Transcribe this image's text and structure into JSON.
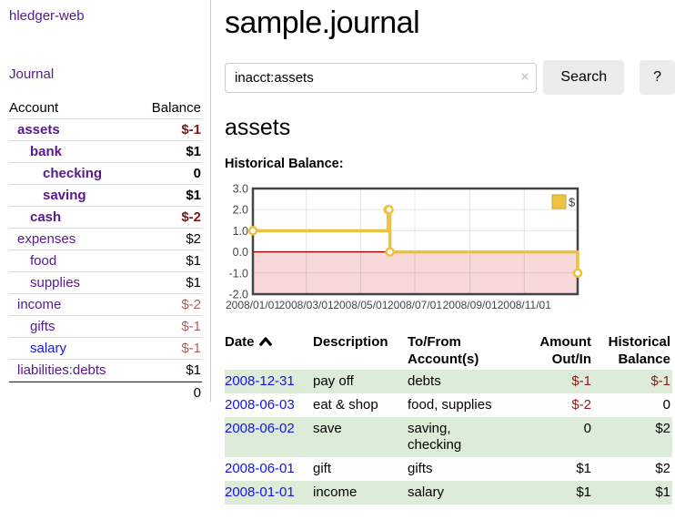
{
  "app": {
    "brand": "hledger-web",
    "nav": {
      "journal": "Journal"
    }
  },
  "sidebar": {
    "header": {
      "account": "Account",
      "balance": "Balance"
    },
    "rows": [
      {
        "name": "assets",
        "balance": "$-1",
        "level": 1,
        "strong": true,
        "balance_tone": "neg-strong",
        "link_tone": "visited"
      },
      {
        "name": "bank",
        "balance": "$1",
        "level": 2,
        "strong": true,
        "balance_tone": "pos",
        "link_tone": "visited"
      },
      {
        "name": "checking",
        "balance": "0",
        "level": 3,
        "strong": true,
        "balance_tone": "pos",
        "link_tone": "visited"
      },
      {
        "name": "saving",
        "balance": "$1",
        "level": 3,
        "strong": true,
        "balance_tone": "pos",
        "link_tone": "visited"
      },
      {
        "name": "cash",
        "balance": "$-2",
        "level": 2,
        "strong": true,
        "balance_tone": "neg-strong",
        "link_tone": "visited"
      },
      {
        "name": "expenses",
        "balance": "$2",
        "level": 1,
        "strong": false,
        "balance_tone": "pos",
        "link_tone": "visited"
      },
      {
        "name": "food",
        "balance": "$1",
        "level": 2,
        "strong": false,
        "balance_tone": "pos",
        "link_tone": "visited"
      },
      {
        "name": "supplies",
        "balance": "$1",
        "level": 2,
        "strong": false,
        "balance_tone": "pos",
        "link_tone": "visited"
      },
      {
        "name": "income",
        "balance": "$-2",
        "level": 1,
        "strong": false,
        "balance_tone": "neg-muted",
        "link_tone": "visited"
      },
      {
        "name": "gifts",
        "balance": "$-1",
        "level": 2,
        "strong": false,
        "balance_tone": "neg-muted",
        "link_tone": "visited"
      },
      {
        "name": "salary",
        "balance": "$-1",
        "level": 2,
        "strong": false,
        "balance_tone": "neg-muted",
        "link_tone": "unvisited"
      },
      {
        "name": "liabilities:debts",
        "balance": "$1",
        "level": 1,
        "strong": false,
        "balance_tone": "pos",
        "link_tone": "visited"
      }
    ],
    "total": "0"
  },
  "main": {
    "title": "sample.journal",
    "search": {
      "value": "inacct:assets",
      "clear_icon": "×",
      "search_button": "Search",
      "help_button": "?"
    },
    "account_heading": "assets",
    "chart_label": "Historical Balance:"
  },
  "chart_data": {
    "type": "line",
    "title": "Historical Balance",
    "step": true,
    "xrange": [
      "2008-01-01",
      "2008-12-31"
    ],
    "ylim": [
      -2,
      3
    ],
    "yticks": [
      "3.0",
      "2.0",
      "1.0",
      "0.0",
      "-1.0",
      "-2.0"
    ],
    "xticks": [
      "2008/01/01",
      "2008/03/01",
      "2008/05/01",
      "2008/07/01",
      "2008/09/01",
      "2008/11/01"
    ],
    "series": [
      {
        "name": "$",
        "color": "#edc240",
        "points": [
          {
            "x": "2008-01-01",
            "y": 1
          },
          {
            "x": "2008-06-01",
            "y": 2
          },
          {
            "x": "2008-06-02",
            "y": 2
          },
          {
            "x": "2008-06-03",
            "y": 0
          },
          {
            "x": "2008-12-31",
            "y": -1
          }
        ]
      }
    ],
    "legend_position": "top-right",
    "grid": true,
    "zero_line_color": "#a00000",
    "negative_region_fill": "#f8d8d8"
  },
  "register": {
    "columns": {
      "date": "Date",
      "description": "Description",
      "accounts": "To/From Account(s)",
      "amount": "Amount Out/In",
      "balance": "Historical Balance"
    },
    "sort": "date ascending",
    "rows": [
      {
        "date": "2008-12-31",
        "description": "pay off",
        "accounts": "debts",
        "amount": "$-1",
        "balance": "$-1",
        "amount_negative": true,
        "balance_negative": true
      },
      {
        "date": "2008-06-03",
        "description": "eat & shop",
        "accounts": "food, supplies",
        "amount": "$-2",
        "balance": "0",
        "amount_negative": true,
        "balance_negative": false
      },
      {
        "date": "2008-06-02",
        "description": "save",
        "accounts": "saving,\nchecking",
        "amount": "0",
        "balance": "$2",
        "amount_negative": false,
        "balance_negative": false
      },
      {
        "date": "2008-06-01",
        "description": "gift",
        "accounts": "gifts",
        "amount": "$1",
        "balance": "$2",
        "amount_negative": false,
        "balance_negative": false
      },
      {
        "date": "2008-01-01",
        "description": "income",
        "accounts": "salary",
        "amount": "$1",
        "balance": "$1",
        "amount_negative": false,
        "balance_negative": false
      }
    ]
  },
  "colors": {
    "link_purple": "#551a8b",
    "link_blue": "#1414e0",
    "negative_strong": "#8b1212",
    "negative_muted": "#b0605c",
    "register_negative": "#8b1a1a",
    "row_green": "#ddecd8",
    "chart_line": "#edc240",
    "chart_zero_line": "#a00000",
    "chart_negative_fill": "#f8d8d8"
  }
}
